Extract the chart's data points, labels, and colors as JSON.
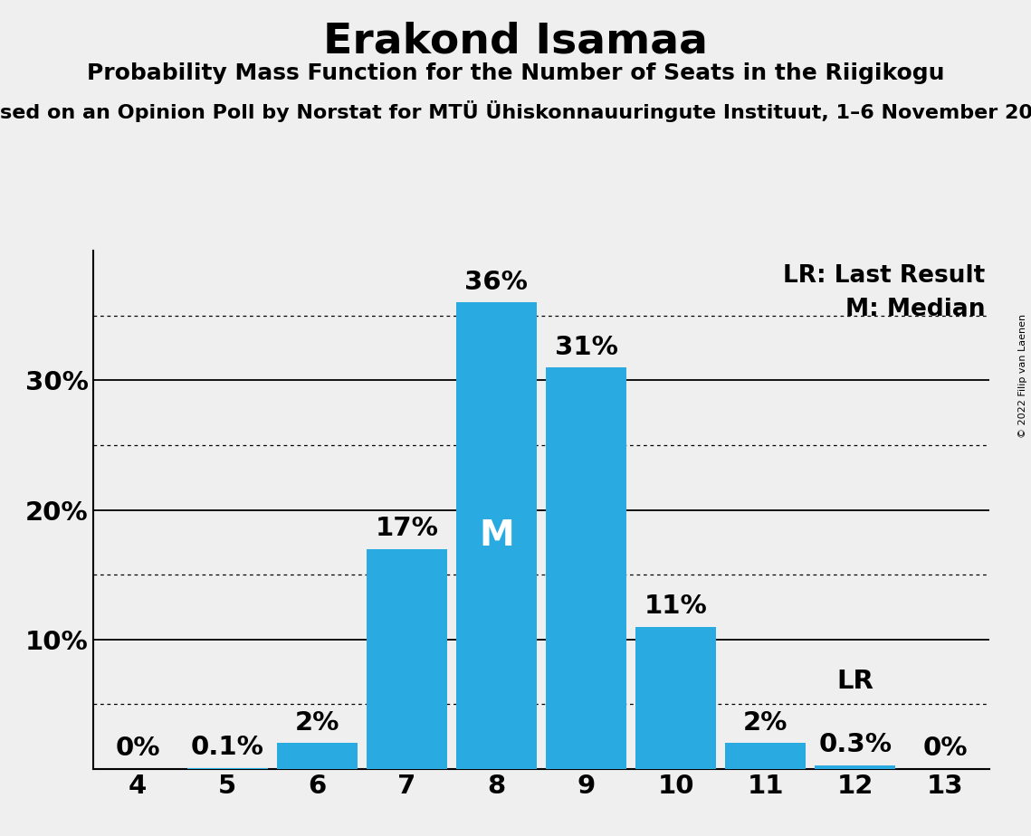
{
  "title": "Erakond Isamaa",
  "subtitle1": "Probability Mass Function for the Number of Seats in the Riigikogu",
  "subtitle2": "sed on an Opinion Poll by Norstat for MTÜ Ühiskonnauuringute Instituut, 1–6 November 20",
  "copyright": "© 2022 Filip van Laenen",
  "categories": [
    4,
    5,
    6,
    7,
    8,
    9,
    10,
    11,
    12,
    13
  ],
  "values": [
    0.0,
    0.1,
    2.0,
    17.0,
    36.0,
    31.0,
    11.0,
    2.0,
    0.3,
    0.0
  ],
  "bar_color": "#29ABE2",
  "background_color": "#EFEFEF",
  "median_seat": 8,
  "lr_seat": 12,
  "legend_lr": "LR: Last Result",
  "legend_m": "M: Median",
  "solid_line_values": [
    10,
    20,
    30
  ],
  "dotted_line_values": [
    5,
    15,
    25,
    35
  ],
  "ymax": 40,
  "bar_labels": [
    "0%",
    "0.1%",
    "2%",
    "17%",
    "36%",
    "31%",
    "11%",
    "2%",
    "0.3%",
    "0%"
  ]
}
